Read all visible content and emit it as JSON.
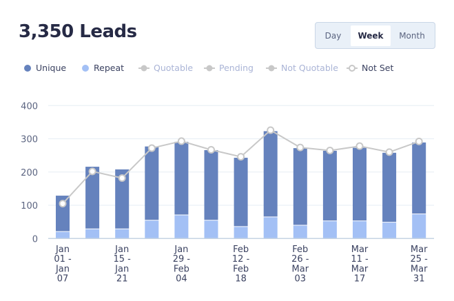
{
  "header": {
    "title": "3,350 Leads"
  },
  "range_toggle": {
    "options": [
      "Day",
      "Week",
      "Month"
    ],
    "selected": "Week"
  },
  "legend": [
    {
      "label": "Unique",
      "marker": "dot",
      "color": "#6582bd",
      "active": true
    },
    {
      "label": "Repeat",
      "marker": "dot",
      "color": "#a3c0f5",
      "active": true
    },
    {
      "label": "Quotable",
      "marker": "line-dot",
      "color": "#c8c8c8",
      "active": false
    },
    {
      "label": "Pending",
      "marker": "line-dot",
      "color": "#c8c8c8",
      "active": false
    },
    {
      "label": "Not Quotable",
      "marker": "line-dot",
      "color": "#c8c8c8",
      "active": false
    },
    {
      "label": "Not Set",
      "marker": "line-hollow-dot",
      "color": "#c8c8c8",
      "active": true
    }
  ],
  "chart_data": {
    "type": "bar",
    "stacked": true,
    "categories": [
      [
        "Jan",
        "01 -",
        "Jan",
        "07"
      ],
      [],
      [
        "Jan",
        "15 -",
        "Jan",
        "21"
      ],
      [],
      [
        "Jan",
        "29 -",
        "Feb",
        "04"
      ],
      [],
      [
        "Feb",
        "12 -",
        "Feb",
        "18"
      ],
      [],
      [
        "Feb",
        "26 -",
        "Mar",
        "03"
      ],
      [],
      [
        "Mar",
        "11 -",
        "Mar",
        "17"
      ],
      [],
      [
        "Mar",
        "25 -",
        "Mar",
        "31"
      ]
    ],
    "series": [
      {
        "name": "Repeat",
        "type": "bar",
        "color": "#a3c0f5",
        "values": [
          20,
          28,
          28,
          54,
          70,
          54,
          35,
          64,
          39,
          52,
          52,
          48,
          73
        ]
      },
      {
        "name": "Unique",
        "type": "bar",
        "color": "#6582bd",
        "values": [
          109,
          188,
          180,
          223,
          221,
          212,
          208,
          259,
          233,
          212,
          221,
          210,
          216
        ]
      },
      {
        "name": "Not Set",
        "type": "line",
        "color": "#c8c8c8",
        "values": [
          105,
          202,
          182,
          272,
          293,
          267,
          246,
          326,
          274,
          265,
          278,
          260,
          292
        ]
      }
    ],
    "ylim": [
      0,
      400
    ],
    "yticks": [
      0,
      100,
      200,
      300,
      400
    ],
    "grid": true,
    "legend_position": "top-left"
  }
}
